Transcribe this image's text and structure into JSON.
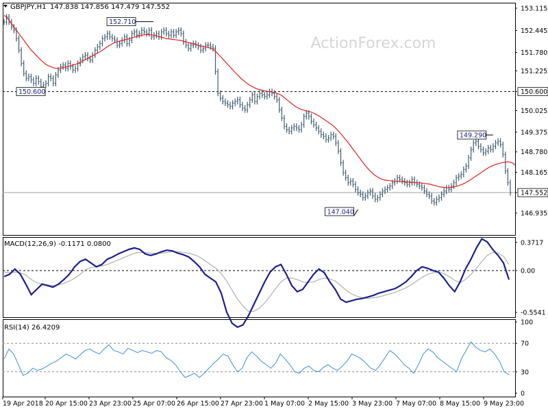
{
  "colors": {
    "background": "#ffffff",
    "frame": "#000000",
    "candles": "#3d5a6c",
    "ma": "#e02020",
    "macd_main": "#1a1f8c",
    "macd_signal": "#b0b0b0",
    "rsi": "#3c8ed8",
    "dashed": "#000000",
    "watermark": "#d0d0d0"
  },
  "watermark": "ActionForex.com",
  "chart_data": [
    {
      "type": "line",
      "panel": "price",
      "symbol_header": "GBPJPY,H1",
      "ohlc_header": "147.838 147.856 147.479 147.552",
      "yticks": [
        "153.115",
        "152.445",
        "151.780",
        "151.225",
        "150.600",
        "150.025",
        "149.375",
        "148.780",
        "148.165",
        "147.552",
        "146.935"
      ],
      "yscale_ref": [
        146.935,
        153.115
      ],
      "ylim": [
        146.8,
        153.2
      ],
      "hline_dashed": 150.6,
      "hline_solid": 147.552,
      "current_label": "147.552",
      "level_label": "150.600",
      "annotations": [
        {
          "text": "152.710",
          "x": 58,
          "y": 152.71
        },
        {
          "text": "150.600",
          "x": 5,
          "y": 150.6
        },
        {
          "text": "149.290",
          "x": 199,
          "y": 149.29
        },
        {
          "text": "147.040",
          "x": 144,
          "y": 147.04
        }
      ],
      "series": [
        {
          "name": "",
          "values": [
            152.7,
            152.85,
            152.7,
            152.55,
            152.45,
            152.2,
            151.85,
            151.45,
            151.15,
            151.0,
            151.05,
            150.95,
            150.85,
            151.0,
            150.9,
            150.75,
            150.8,
            150.85,
            151.05,
            151.0,
            150.85,
            151.1,
            151.25,
            151.35,
            151.4,
            151.3,
            151.45,
            151.35,
            151.25,
            151.3,
            151.45,
            151.55,
            151.65,
            151.7,
            151.6,
            151.55,
            151.7,
            151.85,
            151.95,
            152.05,
            152.2,
            152.25,
            152.35,
            152.25,
            152.2,
            152.15,
            152.0,
            152.05,
            152.15,
            152.25,
            152.05,
            152.15,
            152.35,
            152.4,
            152.3,
            152.35,
            152.45,
            152.4,
            152.35,
            152.45,
            152.25,
            152.3,
            152.35,
            152.25,
            152.4,
            152.45,
            152.35,
            152.3,
            152.4,
            152.3,
            152.4,
            152.45,
            152.35,
            152.1,
            152.0,
            151.9,
            152.0,
            152.05,
            152.0,
            151.95,
            151.85,
            151.9,
            152.0,
            152.0,
            151.95,
            151.9,
            151.2,
            150.55,
            150.4,
            150.3,
            150.25,
            150.2,
            150.15,
            150.25,
            150.3,
            150.35,
            150.2,
            150.1,
            150.05,
            150.2,
            150.35,
            150.5,
            150.3,
            150.45,
            150.55,
            150.5,
            150.45,
            150.5,
            150.6,
            150.55,
            150.45,
            150.35,
            150.05,
            149.8,
            149.55,
            149.45,
            149.4,
            149.5,
            149.55,
            149.5,
            149.45,
            149.6,
            149.85,
            149.95,
            149.85,
            149.7,
            149.6,
            149.5,
            149.4,
            149.3,
            149.25,
            149.15,
            149.2,
            149.3,
            149.25,
            149.05,
            148.8,
            148.45,
            148.15,
            148.0,
            147.85,
            147.9,
            147.8,
            147.65,
            147.55,
            147.5,
            147.4,
            147.45,
            147.55,
            147.6,
            147.45,
            147.35,
            147.4,
            147.5,
            147.6,
            147.65,
            147.7,
            147.75,
            147.85,
            147.9,
            148.0,
            147.95,
            147.9,
            147.85,
            147.8,
            147.85,
            147.95,
            147.85,
            147.8,
            147.75,
            147.7,
            147.6,
            147.5,
            147.45,
            147.3,
            147.25,
            147.35,
            147.4,
            147.5,
            147.6,
            147.7,
            147.65,
            147.75,
            147.85,
            148.0,
            148.05,
            148.1,
            148.25,
            148.35,
            148.6,
            148.85,
            149.05,
            149.1,
            148.95,
            148.85,
            148.75,
            148.8,
            148.9,
            148.85,
            148.95,
            149.05,
            149.1,
            149.0,
            148.7,
            148.2,
            147.85,
            147.55
          ]
        },
        {
          "name": "",
          "values": [
            152.9,
            152.85,
            152.75,
            152.65,
            152.55,
            152.45,
            152.35,
            152.25,
            152.15,
            152.05,
            151.95,
            151.85,
            151.78,
            151.7,
            151.62,
            151.55,
            151.48,
            151.42,
            151.38,
            151.35,
            151.32,
            151.3,
            151.3,
            151.3,
            151.32,
            151.34,
            151.36,
            151.38,
            151.4,
            151.42,
            151.45,
            151.48,
            151.52,
            151.56,
            151.6,
            151.64,
            151.68,
            151.72,
            151.76,
            151.8,
            151.85,
            151.9,
            151.95,
            152.0,
            152.04,
            152.08,
            152.1,
            152.12,
            152.14,
            152.16,
            152.18,
            152.2,
            152.22,
            152.24,
            152.26,
            152.28,
            152.3,
            152.31,
            152.32,
            152.32,
            152.31,
            152.3,
            152.28,
            152.26,
            152.24,
            152.22,
            152.2,
            152.19,
            152.18,
            152.17,
            152.16,
            152.15,
            152.14,
            152.12,
            152.1,
            152.08,
            152.06,
            152.04,
            152.02,
            152.0,
            151.98,
            151.96,
            151.95,
            151.93,
            151.91,
            151.88,
            151.82,
            151.74,
            151.66,
            151.58,
            151.5,
            151.42,
            151.34,
            151.26,
            151.18,
            151.1,
            151.03,
            150.96,
            150.9,
            150.84,
            150.79,
            150.75,
            150.71,
            150.68,
            150.66,
            150.64,
            150.62,
            150.61,
            150.6,
            150.59,
            150.57,
            150.55,
            150.52,
            150.48,
            150.42,
            150.36,
            150.3,
            150.24,
            150.18,
            150.13,
            150.09,
            150.06,
            150.04,
            150.02,
            150.0,
            149.98,
            149.95,
            149.91,
            149.87,
            149.82,
            149.77,
            149.72,
            149.67,
            149.62,
            149.56,
            149.49,
            149.41,
            149.33,
            149.24,
            149.15,
            149.06,
            148.96,
            148.86,
            148.76,
            148.66,
            148.56,
            148.46,
            148.37,
            148.28,
            148.2,
            148.13,
            148.07,
            148.02,
            147.98,
            147.95,
            147.93,
            147.92,
            147.91,
            147.9,
            147.9,
            147.89,
            147.89,
            147.88,
            147.88,
            147.87,
            147.87,
            147.86,
            147.86,
            147.85,
            147.85,
            147.84,
            147.83,
            147.82,
            147.81,
            147.79,
            147.77,
            147.75,
            147.73,
            147.72,
            147.71,
            147.7,
            147.7,
            147.71,
            147.72,
            147.74,
            147.76,
            147.79,
            147.82,
            147.86,
            147.9,
            147.95,
            148.0,
            148.05,
            148.1,
            148.15,
            148.2,
            148.25,
            148.3,
            148.34,
            148.37,
            148.4,
            148.42,
            148.44,
            148.46,
            148.47,
            148.48,
            148.47,
            148.44,
            148.38
          ]
        }
      ]
    },
    {
      "type": "line",
      "panel": "macd",
      "label": "MACD(12,26,9) -0.1171 0.0800",
      "yticks": [
        "0.3717",
        "0.00",
        "-0.5541"
      ],
      "yscale_ref": [
        -0.5541,
        0.3717
      ],
      "zero_dashed": 0,
      "series": [
        {
          "name": "",
          "values": [
            -0.08,
            -0.05,
            0.02,
            -0.05,
            -0.18,
            -0.32,
            -0.25,
            -0.18,
            -0.2,
            -0.22,
            -0.18,
            -0.12,
            -0.05,
            0.05,
            0.12,
            0.15,
            0.1,
            0.05,
            0.08,
            0.15,
            0.18,
            0.22,
            0.25,
            0.28,
            0.3,
            0.28,
            0.22,
            0.2,
            0.22,
            0.25,
            0.27,
            0.26,
            0.23,
            0.21,
            0.18,
            0.12,
            0.05,
            -0.05,
            -0.1,
            -0.15,
            -0.3,
            -0.55,
            -0.7,
            -0.75,
            -0.72,
            -0.6,
            -0.45,
            -0.3,
            -0.15,
            -0.02,
            0.05,
            0.08,
            -0.05,
            -0.2,
            -0.28,
            -0.25,
            -0.15,
            -0.05,
            0.02,
            -0.03,
            -0.15,
            -0.25,
            -0.38,
            -0.42,
            -0.4,
            -0.38,
            -0.37,
            -0.35,
            -0.33,
            -0.3,
            -0.28,
            -0.26,
            -0.24,
            -0.2,
            -0.15,
            -0.08,
            0.0,
            0.05,
            0.03,
            0.0,
            -0.02,
            -0.1,
            -0.2,
            -0.28,
            -0.15,
            0.02,
            0.15,
            0.3,
            0.42,
            0.38,
            0.28,
            0.2,
            0.1,
            -0.12
          ]
        },
        {
          "name": "",
          "values": [
            -0.02,
            -0.03,
            -0.02,
            -0.03,
            -0.06,
            -0.12,
            -0.16,
            -0.18,
            -0.19,
            -0.2,
            -0.19,
            -0.17,
            -0.14,
            -0.1,
            -0.05,
            0.01,
            0.04,
            0.05,
            0.06,
            0.08,
            0.11,
            0.14,
            0.17,
            0.2,
            0.23,
            0.24,
            0.24,
            0.23,
            0.23,
            0.23,
            0.24,
            0.25,
            0.25,
            0.24,
            0.23,
            0.21,
            0.18,
            0.13,
            0.08,
            0.03,
            -0.04,
            -0.14,
            -0.26,
            -0.38,
            -0.47,
            -0.54,
            -0.54,
            -0.5,
            -0.43,
            -0.34,
            -0.24,
            -0.15,
            -0.1,
            -0.1,
            -0.12,
            -0.15,
            -0.16,
            -0.15,
            -0.12,
            -0.1,
            -0.11,
            -0.14,
            -0.2,
            -0.26,
            -0.31,
            -0.34,
            -0.36,
            -0.37,
            -0.36,
            -0.35,
            -0.33,
            -0.31,
            -0.29,
            -0.26,
            -0.23,
            -0.19,
            -0.14,
            -0.09,
            -0.05,
            -0.03,
            -0.02,
            -0.04,
            -0.08,
            -0.13,
            -0.16,
            -0.12,
            -0.05,
            0.03,
            0.12,
            0.2,
            0.24,
            0.23,
            0.19,
            0.08
          ]
        }
      ]
    },
    {
      "type": "line",
      "panel": "rsi",
      "label": "RSI(14) 26.4209",
      "yticks": [
        "100",
        "70",
        "30",
        "0"
      ],
      "levels_dashed": [
        70,
        30
      ],
      "series": [
        {
          "name": "",
          "values": [
            48,
            62,
            55,
            40,
            25,
            28,
            35,
            32,
            34,
            38,
            42,
            45,
            50,
            55,
            52,
            48,
            54,
            60,
            62,
            58,
            55,
            62,
            68,
            60,
            58,
            55,
            63,
            60,
            57,
            60,
            58,
            56,
            60,
            58,
            50,
            46,
            40,
            30,
            22,
            25,
            28,
            22,
            28,
            35,
            42,
            48,
            55,
            52,
            40,
            30,
            35,
            50,
            58,
            52,
            45,
            40,
            35,
            42,
            55,
            48,
            40,
            30,
            28,
            35,
            38,
            32,
            30,
            36,
            40,
            35,
            32,
            38,
            45,
            55,
            52,
            48,
            42,
            35,
            32,
            40,
            50,
            60,
            55,
            48,
            40,
            35,
            28,
            40,
            55,
            62,
            58,
            50,
            45,
            40,
            35,
            30,
            48,
            60,
            72,
            65,
            60,
            58,
            62,
            55,
            45,
            30,
            26
          ]
        }
      ]
    }
  ],
  "x_labels": [
    "19 Apr 2018",
    "20 Apr 15:00",
    "23 Apr 23:00",
    "25 Apr 07:00",
    "26 Apr 15:00",
    "27 Apr 23:00",
    "1 May 07:00",
    "2 May 15:00",
    "3 May 23:00",
    "7 May 07:00",
    "8 May 15:00",
    "9 May 23:00"
  ]
}
